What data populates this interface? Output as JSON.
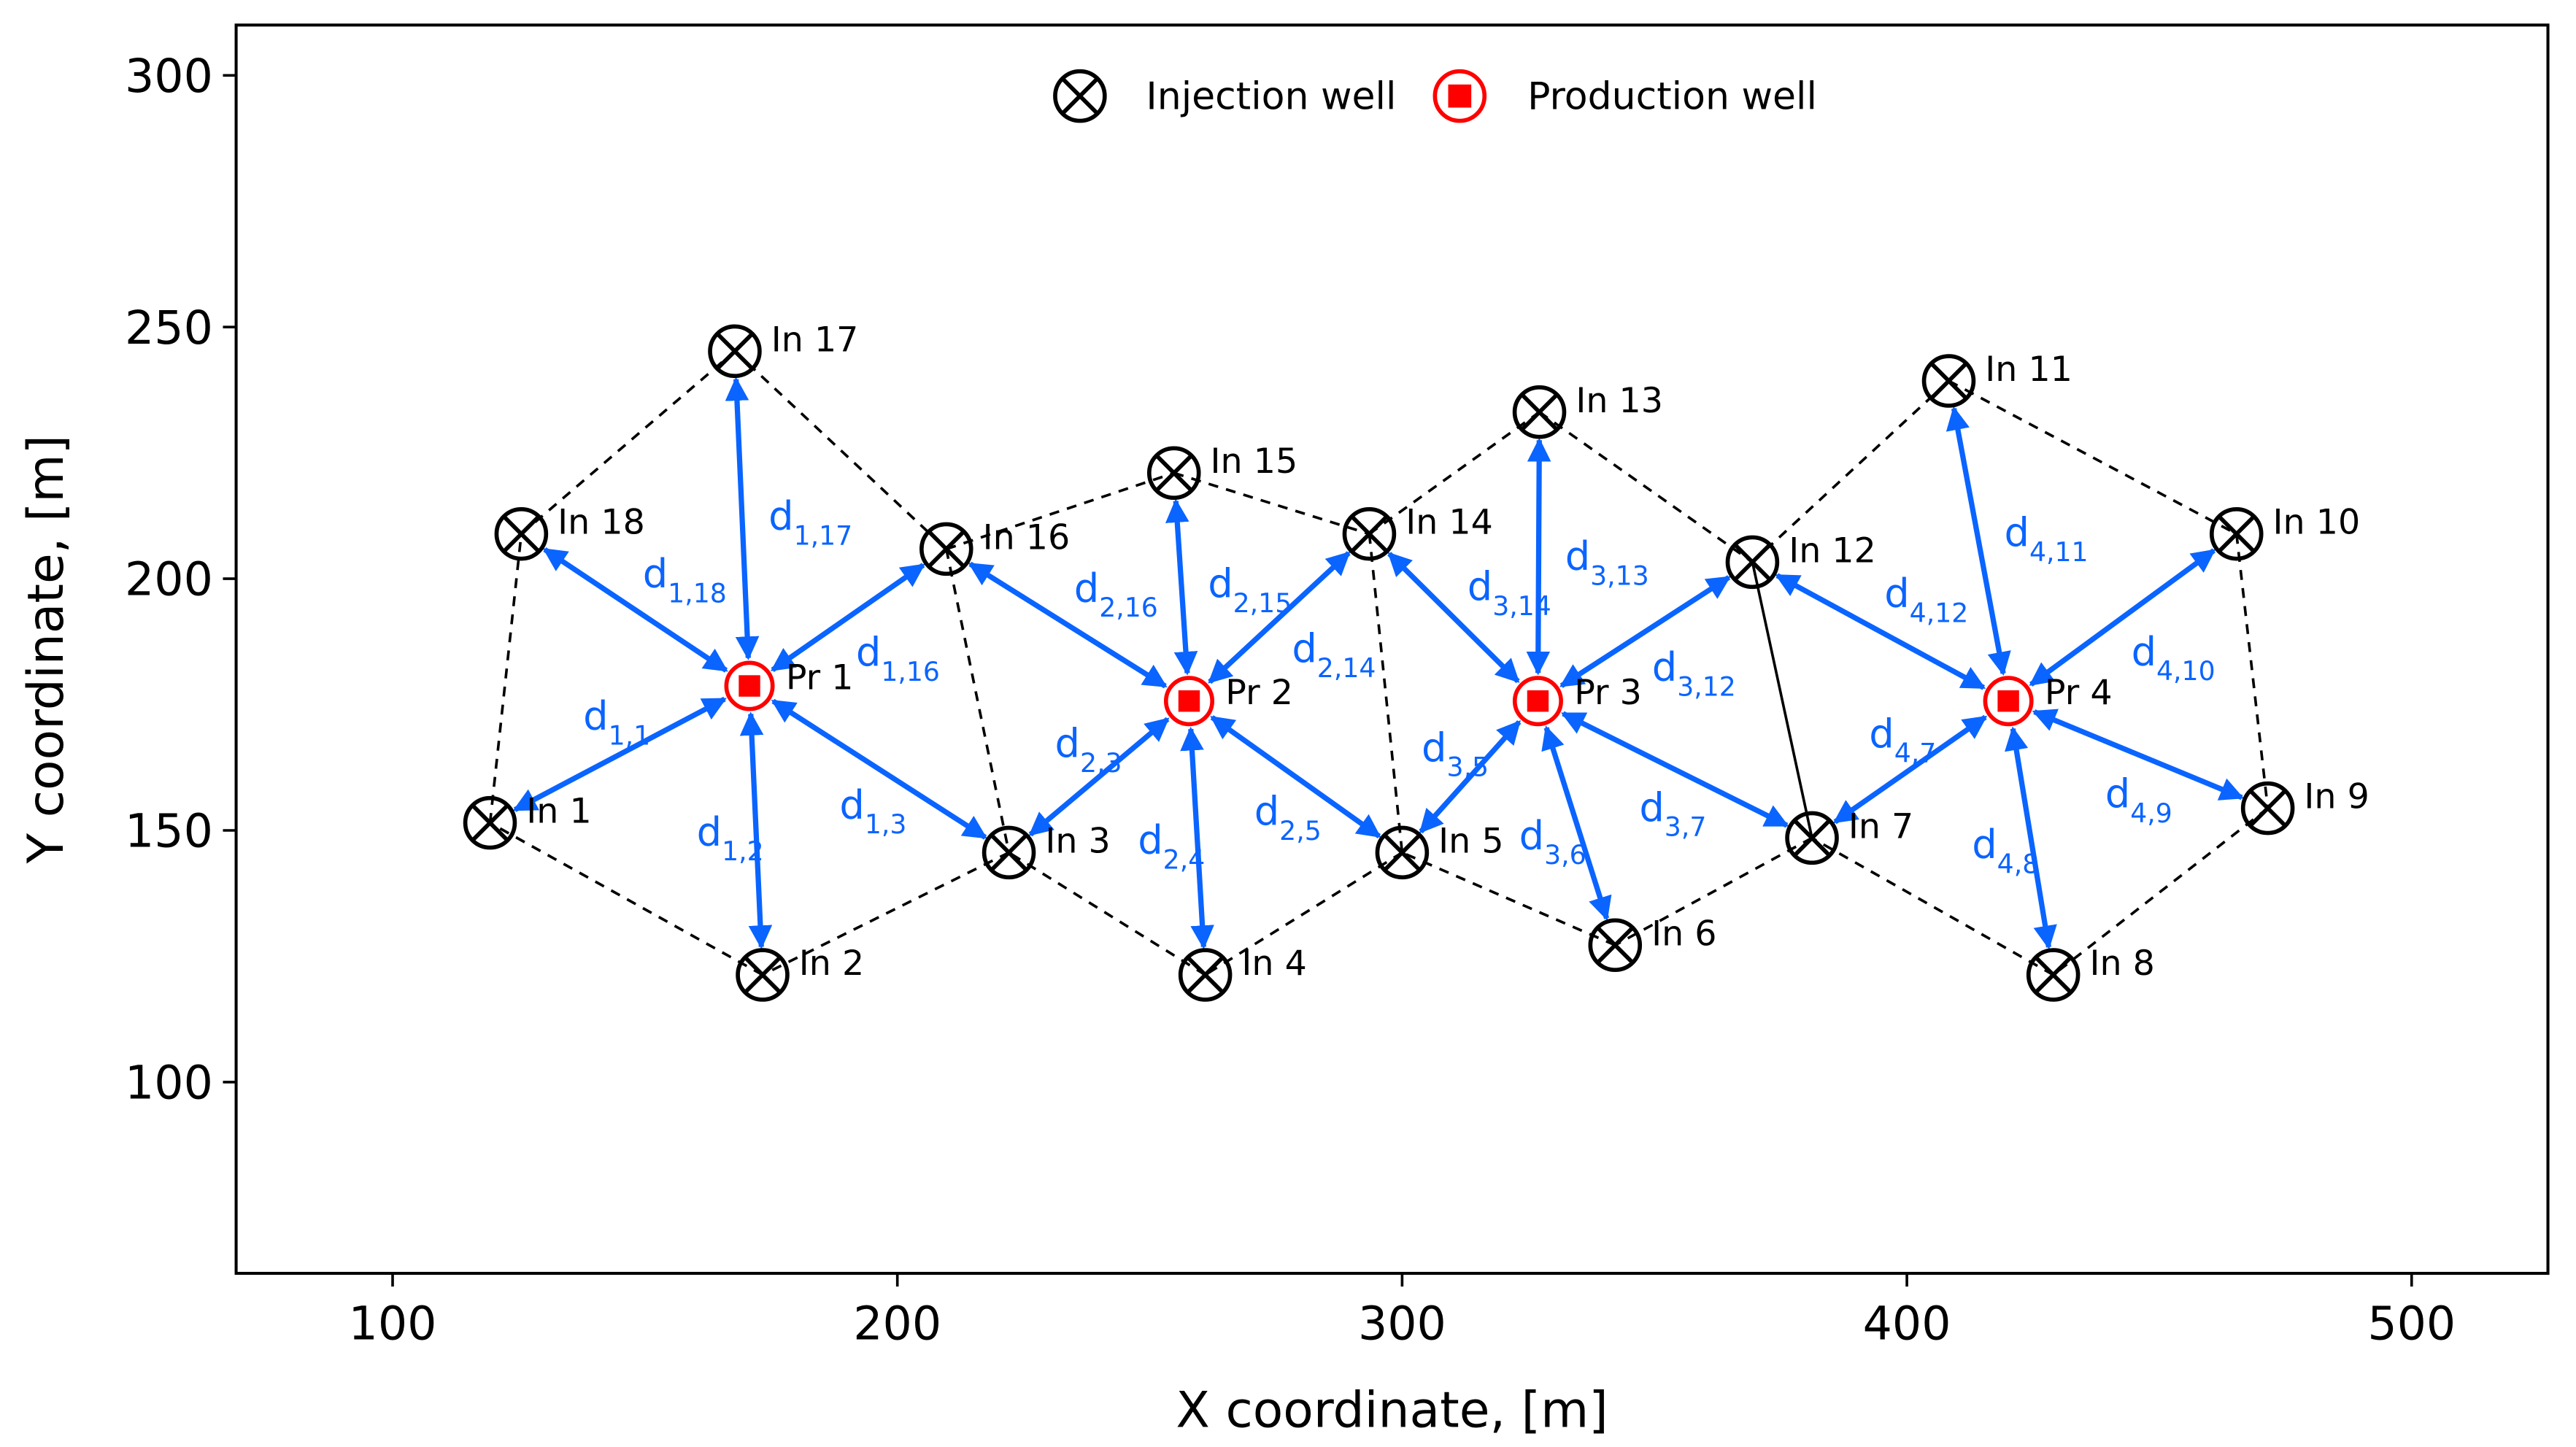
{
  "chart_data": {
    "type": "scatter",
    "title": "",
    "xlabel": "X coordinate, [m]",
    "ylabel": "Y coordinate, [m]",
    "xlim": [
      69,
      527
    ],
    "ylim": [
      62,
      310
    ],
    "xticks": [
      100,
      200,
      300,
      400,
      500
    ],
    "yticks": [
      100,
      150,
      200,
      250,
      300
    ],
    "grid": false,
    "legend": {
      "placement": "top-center",
      "entries": [
        {
          "label": "Injection well",
          "marker": "circle-x",
          "color": "#000000"
        },
        {
          "label": "Production well",
          "marker": "circle-square",
          "color": "#ff0000"
        }
      ]
    },
    "colors": {
      "arrow": "#0a64ff",
      "injection": "#000000",
      "production": "#ff0000",
      "boundary": "#000000"
    },
    "injection_wells": [
      {
        "label": "In 1",
        "x": 119.3,
        "y": 151.5
      },
      {
        "label": "In 2",
        "x": 173.3,
        "y": 121.3
      },
      {
        "label": "In 3",
        "x": 222.1,
        "y": 145.6
      },
      {
        "label": "In 4",
        "x": 261.0,
        "y": 121.3
      },
      {
        "label": "In 5",
        "x": 300.0,
        "y": 145.6
      },
      {
        "label": "In 6",
        "x": 342.2,
        "y": 127.2
      },
      {
        "label": "In 7",
        "x": 381.2,
        "y": 148.5
      },
      {
        "label": "In 8",
        "x": 429.0,
        "y": 121.3
      },
      {
        "label": "In 9",
        "x": 471.5,
        "y": 154.4
      },
      {
        "label": "In 10",
        "x": 465.3,
        "y": 208.9
      },
      {
        "label": "In 11",
        "x": 408.3,
        "y": 239.3
      },
      {
        "label": "In 12",
        "x": 369.4,
        "y": 203.3
      },
      {
        "label": "In 13",
        "x": 327.2,
        "y": 233.1
      },
      {
        "label": "In 14",
        "x": 293.5,
        "y": 208.9
      },
      {
        "label": "In 15",
        "x": 254.8,
        "y": 221.0
      },
      {
        "label": "In 16",
        "x": 209.7,
        "y": 205.9
      },
      {
        "label": "In 17",
        "x": 167.8,
        "y": 245.2
      },
      {
        "label": "In 18",
        "x": 125.5,
        "y": 208.9
      }
    ],
    "production_wells": [
      {
        "label": "Pr 1",
        "x": 170.7,
        "y": 178.7
      },
      {
        "label": "Pr 2",
        "x": 257.8,
        "y": 175.7
      },
      {
        "label": "Pr 3",
        "x": 326.9,
        "y": 175.7
      },
      {
        "label": "Pr 4",
        "x": 420.1,
        "y": 175.7
      }
    ],
    "distances": [
      {
        "producer": 1,
        "injector": 1,
        "label": "d",
        "sub": "1,1"
      },
      {
        "producer": 1,
        "injector": 2,
        "label": "d",
        "sub": "1,2"
      },
      {
        "producer": 1,
        "injector": 3,
        "label": "d",
        "sub": "1,3"
      },
      {
        "producer": 1,
        "injector": 16,
        "label": "d",
        "sub": "1,16"
      },
      {
        "producer": 1,
        "injector": 17,
        "label": "d",
        "sub": "1,17"
      },
      {
        "producer": 1,
        "injector": 18,
        "label": "d",
        "sub": "1,18"
      },
      {
        "producer": 2,
        "injector": 3,
        "label": "d",
        "sub": "2,3"
      },
      {
        "producer": 2,
        "injector": 4,
        "label": "d",
        "sub": "2,4"
      },
      {
        "producer": 2,
        "injector": 5,
        "label": "d",
        "sub": "2,5"
      },
      {
        "producer": 2,
        "injector": 14,
        "label": "d",
        "sub": "2,14"
      },
      {
        "producer": 2,
        "injector": 15,
        "label": "d",
        "sub": "2,15"
      },
      {
        "producer": 2,
        "injector": 16,
        "label": "d",
        "sub": "2,16"
      },
      {
        "producer": 3,
        "injector": 5,
        "label": "d",
        "sub": "3,5"
      },
      {
        "producer": 3,
        "injector": 6,
        "label": "d",
        "sub": "3,6"
      },
      {
        "producer": 3,
        "injector": 7,
        "label": "d",
        "sub": "3,7"
      },
      {
        "producer": 3,
        "injector": 12,
        "label": "d",
        "sub": "3,12"
      },
      {
        "producer": 3,
        "injector": 13,
        "label": "d",
        "sub": "3,13"
      },
      {
        "producer": 3,
        "injector": 14,
        "label": "d",
        "sub": "3,14"
      },
      {
        "producer": 4,
        "injector": 7,
        "label": "d",
        "sub": "4,7"
      },
      {
        "producer": 4,
        "injector": 8,
        "label": "d",
        "sub": "4,8"
      },
      {
        "producer": 4,
        "injector": 9,
        "label": "d",
        "sub": "4,9"
      },
      {
        "producer": 4,
        "injector": 10,
        "label": "d",
        "sub": "4,10"
      },
      {
        "producer": 4,
        "injector": 11,
        "label": "d",
        "sub": "4,11"
      },
      {
        "producer": 4,
        "injector": 12,
        "label": "d",
        "sub": "4,12"
      }
    ],
    "boundaries": [
      {
        "from": 1,
        "to": 18,
        "style": "dashed"
      },
      {
        "from": 18,
        "to": 17,
        "style": "dashed"
      },
      {
        "from": 17,
        "to": 16,
        "style": "dashed"
      },
      {
        "from": 16,
        "to": 3,
        "style": "dashed"
      },
      {
        "from": 3,
        "to": 2,
        "style": "dashed"
      },
      {
        "from": 2,
        "to": 1,
        "style": "dashed"
      },
      {
        "from": 16,
        "to": 15,
        "style": "dashed"
      },
      {
        "from": 15,
        "to": 14,
        "style": "dashed"
      },
      {
        "from": 14,
        "to": 5,
        "style": "dashed"
      },
      {
        "from": 5,
        "to": 4,
        "style": "dashed"
      },
      {
        "from": 4,
        "to": 3,
        "style": "dashed"
      },
      {
        "from": 14,
        "to": 13,
        "style": "dashed"
      },
      {
        "from": 13,
        "to": 12,
        "style": "dashed"
      },
      {
        "from": 12,
        "to": 7,
        "style": "solid"
      },
      {
        "from": 7,
        "to": 6,
        "style": "dashed"
      },
      {
        "from": 6,
        "to": 5,
        "style": "dashed"
      },
      {
        "from": 12,
        "to": 11,
        "style": "dashed"
      },
      {
        "from": 11,
        "to": 10,
        "style": "dashed"
      },
      {
        "from": 10,
        "to": 9,
        "style": "dashed"
      },
      {
        "from": 9,
        "to": 8,
        "style": "dashed"
      },
      {
        "from": 8,
        "to": 7,
        "style": "dashed"
      }
    ]
  }
}
